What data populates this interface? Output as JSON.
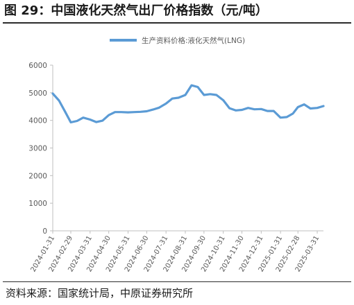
{
  "header": {
    "title": "图 29：中国液化天然气出厂价格指数（元/吨）"
  },
  "footer": {
    "source": "资料来源：国家统计局，中原证券研究所"
  },
  "colors": {
    "series": "#5b9bd5",
    "axis_text": "#595959",
    "axis_line": "#bfbfbf"
  },
  "chart_data": {
    "type": "line",
    "title": "",
    "xlabel": "",
    "ylabel": "",
    "legend_position": "top",
    "grid": false,
    "ylim": [
      0,
      6000
    ],
    "y_ticks": [
      0,
      1000,
      2000,
      3000,
      4000,
      5000,
      6000
    ],
    "x_tick_labels": [
      "2024-01-31",
      "2024-02-29",
      "2024-03-31",
      "2024-04-30",
      "2024-05-31",
      "2024-06-30",
      "2024-07-31",
      "2024-08-31",
      "2024-09-30",
      "2024-10-31",
      "2024-11-30",
      "2024-12-31",
      "2025-01-31",
      "2025-02-28",
      "2025-03-31"
    ],
    "x": [
      "2024-01-31",
      "2024-02-10",
      "2024-02-20",
      "2024-02-29",
      "2024-03-10",
      "2024-03-20",
      "2024-03-31",
      "2024-04-10",
      "2024-04-20",
      "2024-04-30",
      "2024-05-10",
      "2024-05-20",
      "2024-05-31",
      "2024-06-10",
      "2024-06-20",
      "2024-06-30",
      "2024-07-10",
      "2024-07-20",
      "2024-07-31",
      "2024-08-10",
      "2024-08-20",
      "2024-08-31",
      "2024-09-10",
      "2024-09-20",
      "2024-09-30",
      "2024-10-10",
      "2024-10-20",
      "2024-10-31",
      "2024-11-10",
      "2024-11-20",
      "2024-11-30",
      "2024-12-10",
      "2024-12-20",
      "2024-12-31",
      "2025-01-10",
      "2025-01-20",
      "2025-01-31",
      "2025-02-10",
      "2025-02-20",
      "2025-02-28",
      "2025-03-10",
      "2025-03-20",
      "2025-03-31",
      "2025-04-10"
    ],
    "series": [
      {
        "name": "生产资料价格:液化天然气(LNG)",
        "values": [
          4970,
          4720,
          4310,
          3930,
          3980,
          4100,
          4030,
          3940,
          3990,
          4190,
          4300,
          4300,
          4290,
          4300,
          4310,
          4330,
          4390,
          4460,
          4610,
          4790,
          4820,
          4920,
          5270,
          5210,
          4920,
          4950,
          4920,
          4730,
          4440,
          4360,
          4380,
          4450,
          4400,
          4410,
          4340,
          4340,
          4100,
          4120,
          4250,
          4480,
          4580,
          4430,
          4450,
          4520
        ]
      }
    ]
  }
}
